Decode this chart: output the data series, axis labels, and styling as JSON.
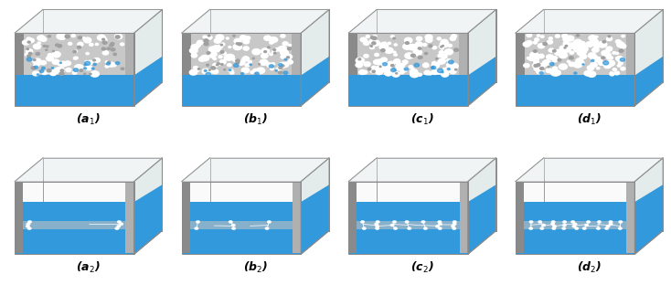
{
  "figure_width": 7.34,
  "figure_height": 3.35,
  "dpi": 100,
  "nrows": 2,
  "ncols": 4,
  "background_color": "#ffffff",
  "labels_row1": [
    "(a$_1$)",
    "(b$_1$)",
    "(c$_1$)",
    "(d$_1$)"
  ],
  "labels_row2": [
    "(a$_2$)",
    "(b$_2$)",
    "(c$_2$)",
    "(d$_2$)"
  ],
  "label_fontsize": 9,
  "label_fontweight": "bold",
  "liquid_color": "#3399dd",
  "vapor_color": "#f0f0f0",
  "wall_color": "#8a8a8a",
  "wall_color_light": "#b0b0b0",
  "edge_color": "#888888",
  "glass_color": "#e8f0f0",
  "right_face_color": "#c8d8d8",
  "top_face_color": "#e0e8e8"
}
